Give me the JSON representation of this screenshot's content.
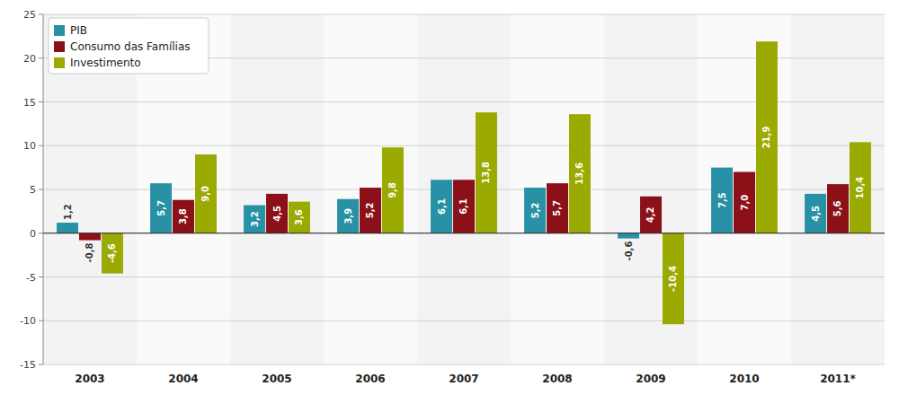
{
  "chart_data": {
    "type": "bar",
    "categories": [
      "2003",
      "2004",
      "2005",
      "2006",
      "2007",
      "2008",
      "2009",
      "2010",
      "2011*"
    ],
    "series": [
      {
        "name": "PIB",
        "color": "#2891a5",
        "values": [
          1.2,
          5.7,
          3.2,
          3.9,
          6.1,
          5.2,
          -0.6,
          7.5,
          4.5
        ],
        "value_labels": [
          "1,2",
          "5,7",
          "3,2",
          "3,9",
          "6,1",
          "5,2",
          "-0,6",
          "7,5",
          "4,5"
        ]
      },
      {
        "name": "Consumo das Famílias",
        "color": "#8b1018",
        "values": [
          -0.8,
          3.8,
          4.5,
          5.2,
          6.1,
          5.7,
          4.2,
          7.0,
          5.6
        ],
        "value_labels": [
          "-0,8",
          "3,8",
          "4,5",
          "5,2",
          "6,1",
          "5,7",
          "4,2",
          "7,0",
          "5,6"
        ]
      },
      {
        "name": "Investimento",
        "color": "#9aaa00",
        "values": [
          -4.6,
          9.0,
          3.6,
          9.8,
          13.8,
          13.6,
          -10.4,
          21.9,
          10.4
        ],
        "value_labels": [
          "-4,6",
          "9,0",
          "3,6",
          "9,8",
          "13,8",
          "13,6",
          "-10,4",
          "21,9",
          "10,4"
        ]
      }
    ],
    "ylim": [
      -15,
      25
    ],
    "yticks": [
      -15,
      -10,
      -5,
      0,
      5,
      10,
      15,
      20,
      25
    ],
    "grid": true,
    "data_labels": true,
    "legend": "upper left"
  }
}
